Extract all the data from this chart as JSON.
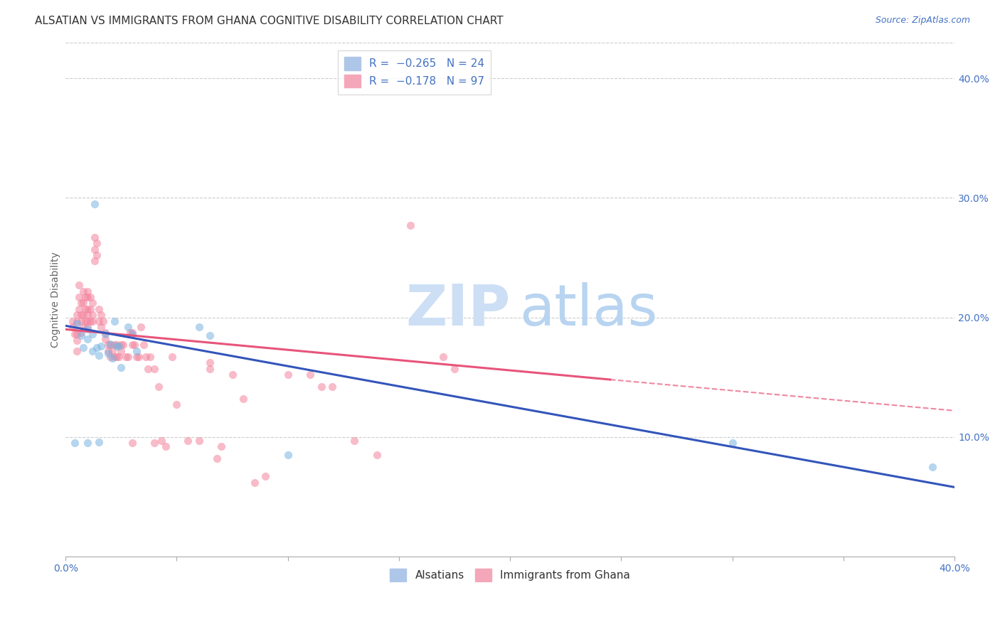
{
  "title": "ALSATIAN VS IMMIGRANTS FROM GHANA COGNITIVE DISABILITY CORRELATION CHART",
  "source": "Source: ZipAtlas.com",
  "ylabel": "Cognitive Disability",
  "legend_entries": [
    {
      "label": "Alsatians",
      "color": "#aec6e8",
      "R": -0.265,
      "N": 24
    },
    {
      "label": "Immigrants from Ghana",
      "color": "#f4a7b9",
      "R": -0.178,
      "N": 97
    }
  ],
  "blue_scatter": [
    [
      0.005,
      0.195
    ],
    [
      0.007,
      0.185
    ],
    [
      0.008,
      0.175
    ],
    [
      0.01,
      0.19
    ],
    [
      0.01,
      0.182
    ],
    [
      0.012,
      0.172
    ],
    [
      0.012,
      0.186
    ],
    [
      0.013,
      0.295
    ],
    [
      0.014,
      0.175
    ],
    [
      0.015,
      0.168
    ],
    [
      0.016,
      0.176
    ],
    [
      0.018,
      0.186
    ],
    [
      0.019,
      0.17
    ],
    [
      0.02,
      0.178
    ],
    [
      0.021,
      0.166
    ],
    [
      0.022,
      0.197
    ],
    [
      0.023,
      0.176
    ],
    [
      0.024,
      0.176
    ],
    [
      0.025,
      0.158
    ],
    [
      0.028,
      0.192
    ],
    [
      0.03,
      0.186
    ],
    [
      0.032,
      0.172
    ],
    [
      0.06,
      0.192
    ],
    [
      0.065,
      0.185
    ]
  ],
  "blue_scatter_special": [
    [
      0.004,
      0.095
    ],
    [
      0.01,
      0.095
    ],
    [
      0.015,
      0.096
    ],
    [
      0.1,
      0.085
    ],
    [
      0.3,
      0.095
    ],
    [
      0.39,
      0.075
    ]
  ],
  "pink_scatter": [
    [
      0.003,
      0.192
    ],
    [
      0.003,
      0.197
    ],
    [
      0.004,
      0.186
    ],
    [
      0.005,
      0.202
    ],
    [
      0.005,
      0.186
    ],
    [
      0.005,
      0.196
    ],
    [
      0.005,
      0.181
    ],
    [
      0.005,
      0.172
    ],
    [
      0.006,
      0.227
    ],
    [
      0.006,
      0.217
    ],
    [
      0.006,
      0.207
    ],
    [
      0.007,
      0.212
    ],
    [
      0.007,
      0.202
    ],
    [
      0.007,
      0.197
    ],
    [
      0.007,
      0.187
    ],
    [
      0.008,
      0.222
    ],
    [
      0.008,
      0.212
    ],
    [
      0.008,
      0.202
    ],
    [
      0.008,
      0.192
    ],
    [
      0.009,
      0.217
    ],
    [
      0.009,
      0.207
    ],
    [
      0.009,
      0.197
    ],
    [
      0.01,
      0.222
    ],
    [
      0.01,
      0.217
    ],
    [
      0.01,
      0.207
    ],
    [
      0.01,
      0.202
    ],
    [
      0.01,
      0.197
    ],
    [
      0.01,
      0.192
    ],
    [
      0.011,
      0.217
    ],
    [
      0.011,
      0.207
    ],
    [
      0.011,
      0.197
    ],
    [
      0.012,
      0.212
    ],
    [
      0.012,
      0.202
    ],
    [
      0.012,
      0.197
    ],
    [
      0.013,
      0.267
    ],
    [
      0.013,
      0.257
    ],
    [
      0.013,
      0.247
    ],
    [
      0.014,
      0.262
    ],
    [
      0.014,
      0.252
    ],
    [
      0.015,
      0.207
    ],
    [
      0.015,
      0.197
    ],
    [
      0.016,
      0.202
    ],
    [
      0.016,
      0.192
    ],
    [
      0.017,
      0.197
    ],
    [
      0.018,
      0.187
    ],
    [
      0.018,
      0.182
    ],
    [
      0.019,
      0.177
    ],
    [
      0.019,
      0.172
    ],
    [
      0.02,
      0.167
    ],
    [
      0.02,
      0.177
    ],
    [
      0.021,
      0.172
    ],
    [
      0.022,
      0.167
    ],
    [
      0.022,
      0.177
    ],
    [
      0.023,
      0.177
    ],
    [
      0.023,
      0.167
    ],
    [
      0.024,
      0.167
    ],
    [
      0.025,
      0.177
    ],
    [
      0.025,
      0.172
    ],
    [
      0.026,
      0.177
    ],
    [
      0.027,
      0.167
    ],
    [
      0.028,
      0.167
    ],
    [
      0.029,
      0.187
    ],
    [
      0.03,
      0.187
    ],
    [
      0.03,
      0.177
    ],
    [
      0.031,
      0.177
    ],
    [
      0.032,
      0.167
    ],
    [
      0.033,
      0.167
    ],
    [
      0.034,
      0.192
    ],
    [
      0.035,
      0.177
    ],
    [
      0.036,
      0.167
    ],
    [
      0.037,
      0.157
    ],
    [
      0.038,
      0.167
    ],
    [
      0.04,
      0.157
    ],
    [
      0.042,
      0.142
    ],
    [
      0.043,
      0.097
    ],
    [
      0.045,
      0.092
    ],
    [
      0.048,
      0.167
    ],
    [
      0.05,
      0.127
    ],
    [
      0.055,
      0.097
    ],
    [
      0.06,
      0.097
    ],
    [
      0.065,
      0.162
    ],
    [
      0.065,
      0.157
    ],
    [
      0.068,
      0.082
    ],
    [
      0.07,
      0.092
    ],
    [
      0.075,
      0.152
    ],
    [
      0.08,
      0.132
    ],
    [
      0.085,
      0.062
    ],
    [
      0.09,
      0.067
    ],
    [
      0.1,
      0.152
    ],
    [
      0.11,
      0.152
    ],
    [
      0.115,
      0.142
    ],
    [
      0.12,
      0.142
    ],
    [
      0.13,
      0.097
    ],
    [
      0.155,
      0.277
    ],
    [
      0.17,
      0.167
    ],
    [
      0.175,
      0.157
    ],
    [
      0.03,
      0.095
    ],
    [
      0.04,
      0.095
    ],
    [
      0.14,
      0.085
    ]
  ],
  "blue_line": {
    "x_start": 0.0,
    "y_start": 0.193,
    "x_end": 0.4,
    "y_end": 0.058
  },
  "pink_line_solid": {
    "x_start": 0.0,
    "y_start": 0.19,
    "x_end": 0.245,
    "y_end": 0.148
  },
  "pink_line_dashed": {
    "x_start": 0.245,
    "y_start": 0.148,
    "x_end": 0.4,
    "y_end": 0.122
  },
  "xlim": [
    0.0,
    0.4
  ],
  "ylim": [
    0.0,
    0.43
  ],
  "x_ticks": [
    0.0,
    0.05,
    0.1,
    0.15,
    0.2,
    0.25,
    0.3,
    0.35,
    0.4
  ],
  "x_tick_labels_show": [
    "0.0%",
    "",
    "",
    "",
    "",
    "",
    "",
    "",
    "40.0%"
  ],
  "y_ticks_right": [
    0.1,
    0.2,
    0.3,
    0.4
  ],
  "y_tick_labels_right": [
    "10.0%",
    "20.0%",
    "30.0%",
    "40.0%"
  ],
  "grid_color": "#cccccc",
  "background_color": "#ffffff",
  "title_fontsize": 11,
  "source_fontsize": 9,
  "axis_label_fontsize": 10,
  "scatter_alpha": 0.55,
  "scatter_size": 65,
  "blue_color": "#7ab3e0",
  "pink_color": "#f4849e",
  "blue_line_color": "#3355bb",
  "pink_line_color": "#e8547a",
  "watermark_zip_color": "#cddff5",
  "watermark_atlas_color": "#b8d4f0"
}
